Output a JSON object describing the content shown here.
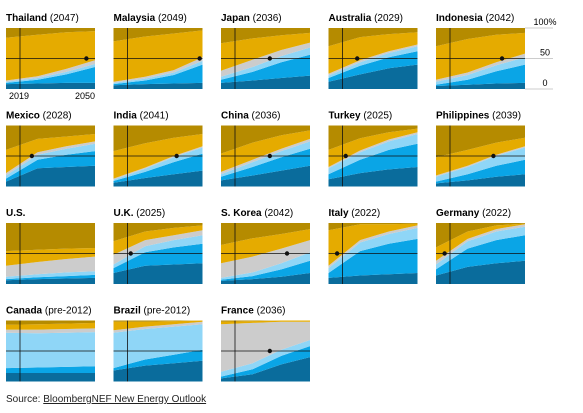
{
  "source": {
    "prefix": "Source: ",
    "name": "BloombergNEF New Energy Outlook"
  },
  "axis": {
    "y_ticks": [
      "100%",
      "50",
      "0"
    ],
    "x_ticks": [
      "2019",
      "2050"
    ]
  },
  "colors": {
    "dark_blue": "#0a6c9c",
    "blue": "#0aa5e6",
    "light_blue": "#8fd6f7",
    "gray": "#cccccc",
    "gold": "#e5ab00",
    "dark_gold": "#b58b00"
  },
  "chart_data": {
    "type": "area",
    "stacked": true,
    "x": [
      2019,
      2030,
      2040,
      2050
    ],
    "ylim": [
      0,
      100
    ],
    "series_colors": [
      "dark_blue",
      "blue",
      "light_blue",
      "gray",
      "gold",
      "dark_gold"
    ],
    "panels": [
      {
        "country": "Thailand",
        "year": "(2047)",
        "crossover": 2047,
        "layers": [
          [
            8,
            9,
            10,
            10
          ],
          [
            2,
            6,
            14,
            26
          ],
          [
            2,
            3,
            4,
            5
          ],
          [
            2,
            3,
            5,
            6
          ],
          [
            70,
            68,
            60,
            48
          ],
          [
            16,
            11,
            7,
            5
          ]
        ]
      },
      {
        "country": "Malaysia",
        "year": "(2049)",
        "crossover": 2049,
        "layers": [
          [
            6,
            8,
            9,
            10
          ],
          [
            2,
            6,
            14,
            30
          ],
          [
            2,
            3,
            4,
            6
          ],
          [
            2,
            3,
            4,
            6
          ],
          [
            66,
            66,
            60,
            44
          ],
          [
            22,
            14,
            9,
            4
          ]
        ]
      },
      {
        "country": "Japan",
        "year": "(2036)",
        "crossover": 2036,
        "layers": [
          [
            10,
            14,
            18,
            22
          ],
          [
            5,
            14,
            26,
            34
          ],
          [
            5,
            8,
            10,
            12
          ],
          [
            10,
            12,
            10,
            8
          ],
          [
            45,
            35,
            24,
            16
          ],
          [
            25,
            17,
            12,
            8
          ]
        ]
      },
      {
        "country": "Australia",
        "year": "(2029)",
        "crossover": 2029,
        "layers": [
          [
            12,
            24,
            34,
            40
          ],
          [
            6,
            14,
            18,
            22
          ],
          [
            4,
            6,
            7,
            8
          ],
          [
            3,
            3,
            3,
            3
          ],
          [
            45,
            38,
            28,
            20
          ],
          [
            30,
            15,
            10,
            7
          ]
        ]
      },
      {
        "country": "Indonesia",
        "year": "(2042)",
        "crossover": 2042,
        "layers": [
          [
            5,
            7,
            9,
            10
          ],
          [
            2,
            8,
            20,
            30
          ],
          [
            5,
            8,
            10,
            12
          ],
          [
            3,
            4,
            5,
            6
          ],
          [
            55,
            55,
            45,
            34
          ],
          [
            30,
            18,
            11,
            8
          ]
        ]
      },
      {
        "country": "Mexico",
        "year": "(2028)",
        "crossover": 2028,
        "layers": [
          [
            8,
            30,
            32,
            34
          ],
          [
            5,
            14,
            20,
            24
          ],
          [
            5,
            8,
            10,
            12
          ],
          [
            4,
            4,
            4,
            4
          ],
          [
            38,
            22,
            16,
            12
          ],
          [
            40,
            22,
            18,
            14
          ]
        ]
      },
      {
        "country": "India",
        "year": "(2041)",
        "crossover": 2041,
        "layers": [
          [
            6,
            14,
            20,
            26
          ],
          [
            3,
            10,
            20,
            28
          ],
          [
            2,
            5,
            8,
            10
          ],
          [
            2,
            2,
            2,
            2
          ],
          [
            45,
            40,
            30,
            20
          ],
          [
            42,
            29,
            20,
            14
          ]
        ]
      },
      {
        "country": "China",
        "year": "(2036)",
        "crossover": 2036,
        "layers": [
          [
            10,
            18,
            26,
            34
          ],
          [
            6,
            14,
            22,
            28
          ],
          [
            4,
            8,
            10,
            12
          ],
          [
            4,
            4,
            4,
            4
          ],
          [
            30,
            28,
            22,
            14
          ],
          [
            46,
            28,
            16,
            8
          ]
        ]
      },
      {
        "country": "Turkey",
        "year": "(2025)",
        "crossover": 2025,
        "layers": [
          [
            12,
            22,
            28,
            32
          ],
          [
            8,
            22,
            32,
            38
          ],
          [
            10,
            12,
            14,
            16
          ],
          [
            2,
            3,
            3,
            3
          ],
          [
            28,
            20,
            12,
            6
          ],
          [
            40,
            21,
            11,
            5
          ]
        ]
      },
      {
        "country": "Philippines",
        "year": "(2039)",
        "crossover": 2039,
        "layers": [
          [
            5,
            10,
            16,
            20
          ],
          [
            3,
            10,
            18,
            24
          ],
          [
            8,
            12,
            16,
            20
          ],
          [
            2,
            2,
            2,
            2
          ],
          [
            30,
            26,
            20,
            14
          ],
          [
            52,
            40,
            28,
            20
          ]
        ]
      },
      {
        "country": "U.S.",
        "year": "",
        "crossover": null,
        "layers": [
          [
            6,
            8,
            9,
            10
          ],
          [
            2,
            3,
            4,
            5
          ],
          [
            4,
            5,
            6,
            6
          ],
          [
            18,
            20,
            22,
            24
          ],
          [
            24,
            20,
            17,
            14
          ],
          [
            46,
            44,
            42,
            41
          ]
        ]
      },
      {
        "country": "U.K.",
        "year": "(2025)",
        "crossover": 2025,
        "layers": [
          [
            18,
            30,
            32,
            34
          ],
          [
            8,
            22,
            28,
            32
          ],
          [
            6,
            10,
            12,
            14
          ],
          [
            16,
            10,
            8,
            8
          ],
          [
            22,
            14,
            12,
            8
          ],
          [
            30,
            14,
            8,
            4
          ]
        ]
      },
      {
        "country": "S. Korea",
        "year": "(2042)",
        "crossover": 2042,
        "layers": [
          [
            5,
            8,
            12,
            18
          ],
          [
            2,
            5,
            12,
            20
          ],
          [
            3,
            6,
            10,
            14
          ],
          [
            24,
            26,
            24,
            20
          ],
          [
            30,
            30,
            24,
            18
          ],
          [
            36,
            25,
            18,
            10
          ]
        ]
      },
      {
        "country": "Italy",
        "year": "(2022)",
        "crossover": 2022,
        "layers": [
          [
            10,
            14,
            16,
            18
          ],
          [
            8,
            40,
            50,
            56
          ],
          [
            8,
            14,
            16,
            18
          ],
          [
            4,
            4,
            4,
            4
          ],
          [
            58,
            26,
            12,
            3
          ],
          [
            12,
            2,
            2,
            1
          ]
        ]
      },
      {
        "country": "Germany",
        "year": "(2022)",
        "crossover": 2022,
        "layers": [
          [
            14,
            28,
            34,
            38
          ],
          [
            10,
            30,
            38,
            42
          ],
          [
            8,
            12,
            14,
            14
          ],
          [
            6,
            4,
            4,
            4
          ],
          [
            22,
            12,
            6,
            1
          ],
          [
            40,
            14,
            4,
            1
          ]
        ]
      },
      {
        "country": "Canada",
        "year": "(pre-2012)",
        "crossover": null,
        "layers": [
          [
            14,
            14,
            14,
            14
          ],
          [
            8,
            9,
            10,
            11
          ],
          [
            58,
            56,
            56,
            56
          ],
          [
            5,
            6,
            6,
            6
          ],
          [
            8,
            9,
            9,
            9
          ],
          [
            7,
            6,
            5,
            4
          ]
        ]
      },
      {
        "country": "Brazil",
        "year": "(pre-2012)",
        "crossover": null,
        "layers": [
          [
            18,
            26,
            30,
            34
          ],
          [
            4,
            10,
            14,
            18
          ],
          [
            58,
            50,
            46,
            42
          ],
          [
            4,
            4,
            4,
            4
          ],
          [
            14,
            8,
            5,
            2
          ],
          [
            2,
            2,
            1,
            0
          ]
        ]
      },
      {
        "country": "France",
        "year": "(2036)",
        "crossover": 2036,
        "layers": [
          [
            5,
            12,
            28,
            40
          ],
          [
            3,
            8,
            14,
            18
          ],
          [
            8,
            10,
            10,
            10
          ],
          [
            78,
            66,
            46,
            30
          ],
          [
            4,
            3,
            2,
            2
          ],
          [
            2,
            1,
            0,
            0
          ]
        ]
      }
    ]
  }
}
